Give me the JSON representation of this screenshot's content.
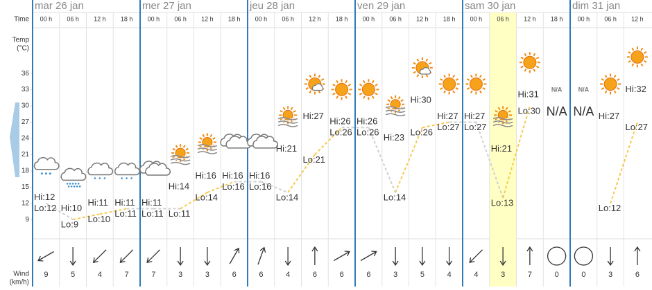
{
  "labels": {
    "time": "Time",
    "temp": "Temp",
    "temp_unit": "(°C)",
    "wind": "Wind",
    "wind_unit": "(km/h)"
  },
  "ylim": [
    8,
    38
  ],
  "yticks": [
    9,
    12,
    15,
    18,
    21,
    24,
    27,
    30,
    33,
    36
  ],
  "days": [
    {
      "label": "mar 26 jan",
      "slots": [
        {
          "time": "00 h",
          "icon": "rain",
          "hi": 12,
          "hi_label": "Hi:12",
          "lo": 12,
          "lo_label": "Lo:12",
          "wind": 9,
          "direction": 240
        },
        {
          "time": "06 h",
          "icon": "snow",
          "hi": 10,
          "hi_label": "Hi:10",
          "lo": 9,
          "lo_label": "Lo:9",
          "wind": 5,
          "direction": 180
        },
        {
          "time": "12 h",
          "icon": "drizzle",
          "hi": 11,
          "hi_label": "Hi:11",
          "lo": 10,
          "lo_label": "Lo:10",
          "wind": 4,
          "direction": 225
        },
        {
          "time": "18 h",
          "icon": "drizzle",
          "hi": 11,
          "hi_label": "Hi:11",
          "lo": 11,
          "lo_label": "Lo:11",
          "wind": 7,
          "direction": 225
        }
      ]
    },
    {
      "label": "mer 27 jan",
      "slots": [
        {
          "time": "00 h",
          "icon": "cloud",
          "hi": 11,
          "hi_label": "Hi:11",
          "lo": 11,
          "lo_label": "Lo:11",
          "wind": 7,
          "direction": 225
        },
        {
          "time": "06 h",
          "icon": "fog-sun",
          "hi": 14,
          "hi_label": "Hi:14",
          "lo": 11,
          "lo_label": "Lo:11",
          "wind": 3,
          "direction": 180
        },
        {
          "time": "12 h",
          "icon": "fog-sun",
          "hi": 16,
          "hi_label": "Hi:16",
          "lo": 14,
          "lo_label": "Lo:14",
          "wind": 3,
          "direction": 180
        },
        {
          "time": "18 h",
          "icon": "cloud",
          "hi": 16,
          "hi_label": "Hi:16",
          "lo": 16,
          "lo_label": "Lo:16",
          "wind": 6,
          "direction": 30
        }
      ]
    },
    {
      "label": "jeu 28 jan",
      "slots": [
        {
          "time": "00 h",
          "icon": "cloud",
          "hi": 16,
          "hi_label": "Hi:16",
          "lo": 16,
          "lo_label": "Lo:16",
          "wind": 6,
          "direction": 20
        },
        {
          "time": "06 h",
          "icon": "fog-sun",
          "hi": 21,
          "hi_label": "Hi:21",
          "lo": 14,
          "lo_label": "Lo:14",
          "wind": 4,
          "direction": 180
        },
        {
          "time": "12 h",
          "icon": "sun-cloud",
          "hi": 27,
          "hi_label": "Hi:27",
          "lo": 21,
          "lo_label": "Lo:21",
          "wind": 6,
          "direction": 0
        },
        {
          "time": "18 h",
          "icon": "sun",
          "hi": 26,
          "hi_label": "Hi:26",
          "lo": 26,
          "lo_label": "Lo:26",
          "wind": 6,
          "direction": 60
        }
      ]
    },
    {
      "label": "ven 29 jan",
      "slots": [
        {
          "time": "00 h",
          "icon": "sun",
          "hi": 26,
          "hi_label": "Hi:26",
          "lo": 26,
          "lo_label": "Lo:26",
          "wind": 6,
          "direction": 60
        },
        {
          "time": "06 h",
          "icon": "fog-sun",
          "hi": 23,
          "hi_label": "Hi:23",
          "lo": 14,
          "lo_label": "Lo:14",
          "wind": 3,
          "direction": 180
        },
        {
          "time": "12 h",
          "icon": "sun-cloud",
          "hi": 30,
          "hi_label": "Hi:30",
          "lo": 26,
          "lo_label": "Lo:26",
          "wind": 5,
          "direction": 180
        },
        {
          "time": "18 h",
          "icon": "sun",
          "hi": 27,
          "hi_label": "Hi:27",
          "lo": 27,
          "lo_label": "Lo:27",
          "wind": 4,
          "direction": 180
        }
      ]
    },
    {
      "label": "sam 30 jan",
      "slots": [
        {
          "time": "00 h",
          "icon": "sun",
          "hi": 27,
          "hi_label": "Hi:27",
          "lo": 27,
          "lo_label": "Lo:27",
          "wind": 4,
          "direction": 225
        },
        {
          "time": "06 h",
          "icon": "fog-sun",
          "hi": 21,
          "hi_label": "Hi:21",
          "lo": 13,
          "lo_label": "Lo:13",
          "wind": 3,
          "direction": 180,
          "highlight": true
        },
        {
          "time": "12 h",
          "icon": "sun",
          "hi": 31,
          "hi_label": "Hi:31",
          "lo": 30,
          "lo_label": "Lo:30",
          "wind": 7,
          "direction": 0
        },
        {
          "time": "18 h",
          "icon": "na",
          "na_icon": "N/A",
          "label": "N/A",
          "hi": null,
          "lo": null,
          "wind": 0,
          "direction": null
        }
      ]
    },
    {
      "label": "dim 31 jan",
      "slots": [
        {
          "time": "00 h",
          "icon": "na",
          "na_icon": "N/A",
          "label": "N/A",
          "hi": null,
          "lo": null,
          "wind": 0,
          "direction": null
        },
        {
          "time": "06 h",
          "icon": "sun",
          "hi": 27,
          "hi_label": "Hi:27",
          "lo": 12,
          "lo_label": "Lo:12",
          "wind": 3,
          "direction": 180
        },
        {
          "time": "12 h",
          "icon": "sun",
          "hi": 32,
          "hi_label": "Hi:32",
          "lo": 27,
          "lo_label": "Lo:27",
          "wind": 6,
          "direction": 0
        }
      ]
    }
  ]
}
